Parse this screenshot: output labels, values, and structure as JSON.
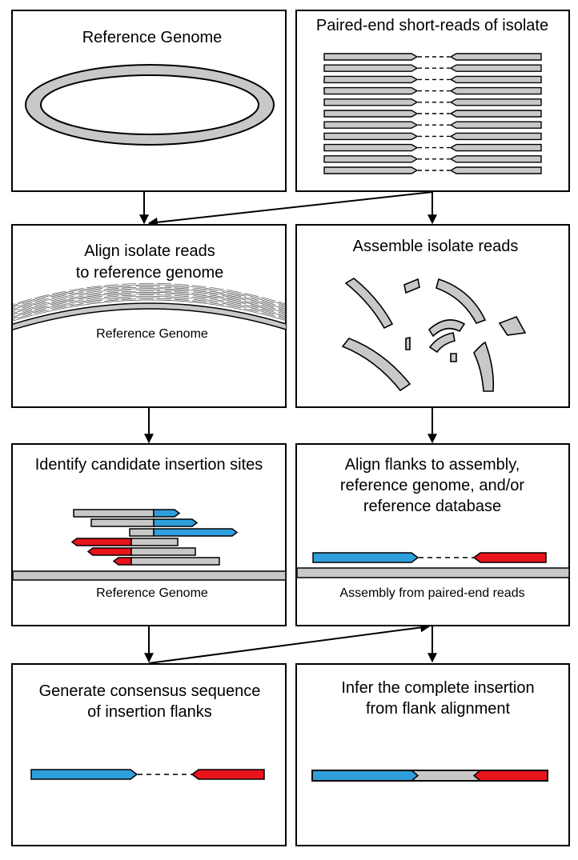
{
  "panels": {
    "reference": {
      "title": "Reference Genome"
    },
    "reads": {
      "title": "Paired-end short-reads of isolate"
    },
    "align": {
      "title_line1": "Align isolate reads",
      "title_line2": "to reference genome",
      "genome_label": "Reference Genome"
    },
    "assemble": {
      "title": "Assemble isolate reads"
    },
    "identify": {
      "title": "Identify candidate insertion sites",
      "genome_label": "Reference Genome"
    },
    "flanks": {
      "title_line1": "Align flanks to assembly,",
      "title_line2": "reference genome, and/or",
      "title_line3": "reference database",
      "assembly_label": "Assembly from paired-end reads"
    },
    "consensus": {
      "title_line1": "Generate consensus sequence",
      "title_line2": "of insertion flanks"
    },
    "infer": {
      "title_line1": "Infer the complete insertion",
      "title_line2": "from flank alignment"
    }
  },
  "colors": {
    "blue": "#2f9fdc",
    "red": "#e8141b",
    "gray": "#c8c8c8",
    "black": "#000000"
  }
}
